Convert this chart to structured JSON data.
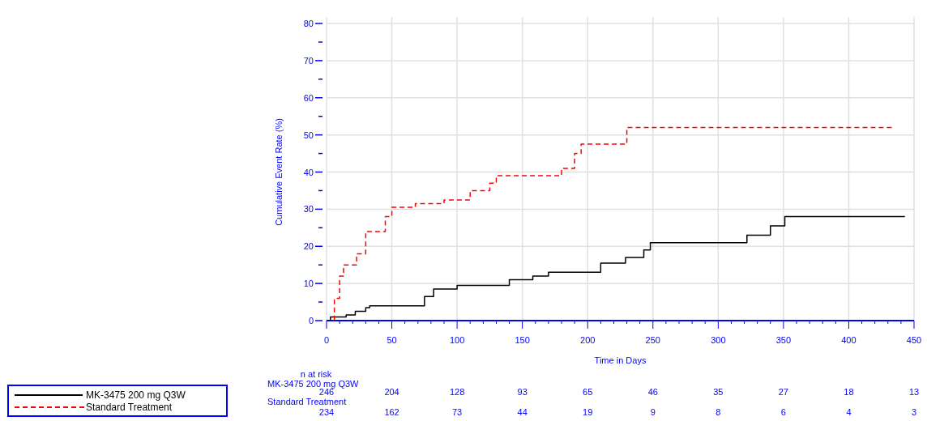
{
  "chart_data": {
    "type": "step",
    "xlabel": "Time in Days",
    "ylabel": "Cumulative Event Rate (%)",
    "xlim": [
      0,
      450
    ],
    "ylim": [
      0,
      80
    ],
    "xticks": [
      0,
      {
        "value": 10,
        "label": null
      },
      {
        "value": 20,
        "label": null
      },
      {
        "value": 30,
        "label": null
      },
      {
        "value": 40,
        "label": null
      },
      50,
      {
        "value": 60,
        "label": null
      },
      {
        "value": 70,
        "label": null
      },
      {
        "value": 80,
        "label": null
      },
      {
        "value": 90,
        "label": null
      },
      100,
      {
        "value": 110,
        "label": null
      },
      {
        "value": 120,
        "label": null
      },
      {
        "value": 130,
        "label": null
      },
      {
        "value": 140,
        "label": null
      },
      150,
      {
        "value": 160,
        "label": null
      },
      {
        "value": 170,
        "label": null
      },
      {
        "value": 180,
        "label": null
      },
      {
        "value": 190,
        "label": null
      },
      200,
      {
        "value": 210,
        "label": null
      },
      {
        "value": 220,
        "label": null
      },
      {
        "value": 230,
        "label": null
      },
      {
        "value": 240,
        "label": null
      },
      250,
      {
        "value": 260,
        "label": null
      },
      {
        "value": 270,
        "label": null
      },
      {
        "value": 280,
        "label": null
      },
      {
        "value": 290,
        "label": null
      },
      300,
      {
        "value": 310,
        "label": null
      },
      {
        "value": 320,
        "label": null
      },
      {
        "value": 330,
        "label": null
      },
      {
        "value": 340,
        "label": null
      },
      350,
      {
        "value": 360,
        "label": null
      },
      {
        "value": 370,
        "label": null
      },
      {
        "value": 380,
        "label": null
      },
      {
        "value": 390,
        "label": null
      },
      400,
      {
        "value": 410,
        "label": null
      },
      {
        "value": 420,
        "label": null
      },
      {
        "value": 430,
        "label": null
      },
      {
        "value": 440,
        "label": null
      },
      450
    ],
    "yticks": [
      0,
      {
        "value": 5,
        "label": null
      },
      10,
      {
        "value": 15,
        "label": null
      },
      20,
      {
        "value": 25,
        "label": null
      },
      30,
      {
        "value": 35,
        "label": null
      },
      40,
      {
        "value": 45,
        "label": null
      },
      50,
      {
        "value": 55,
        "label": null
      },
      60,
      {
        "value": 65,
        "label": null
      },
      70,
      {
        "value": 75,
        "label": null
      },
      80
    ],
    "grid": true,
    "legend": "bottom left",
    "marker": "none",
    "series": [
      {
        "name": "MK-3475 200 mg Q3W",
        "color": "#000000",
        "line_style": "solid",
        "x": [
          0,
          3,
          15,
          22,
          30,
          33,
          75,
          82,
          100,
          140,
          158,
          170,
          210,
          229,
          243,
          248,
          322,
          340,
          351,
          443
        ],
        "values": [
          0,
          1,
          1.5,
          2.5,
          3.5,
          4,
          6.5,
          8.5,
          9.5,
          11,
          12,
          13,
          15.5,
          17,
          19,
          21,
          23,
          25.5,
          28,
          28
        ]
      },
      {
        "name": "Standard Treatment",
        "color": "#ff0000",
        "line_style": "dashed",
        "x": [
          0,
          6,
          10,
          13,
          23,
          30,
          45,
          50,
          68,
          90,
          110,
          125,
          130,
          180,
          190,
          195,
          230,
          435
        ],
        "values": [
          0,
          6,
          12,
          15,
          18,
          24,
          28,
          30.5,
          31.5,
          32.5,
          35,
          37,
          39,
          41,
          45,
          47.5,
          52,
          52
        ]
      }
    ],
    "annotations": [
      "n at risk",
      "MK-3475 200 mg Q3W",
      "246",
      "204",
      "128",
      "93",
      "65",
      "46",
      "35",
      "27",
      "18",
      "13",
      "Standard Treatment",
      "234",
      "162",
      "73",
      "44",
      "19",
      "9",
      "8",
      "6",
      "4",
      "3"
    ]
  }
}
